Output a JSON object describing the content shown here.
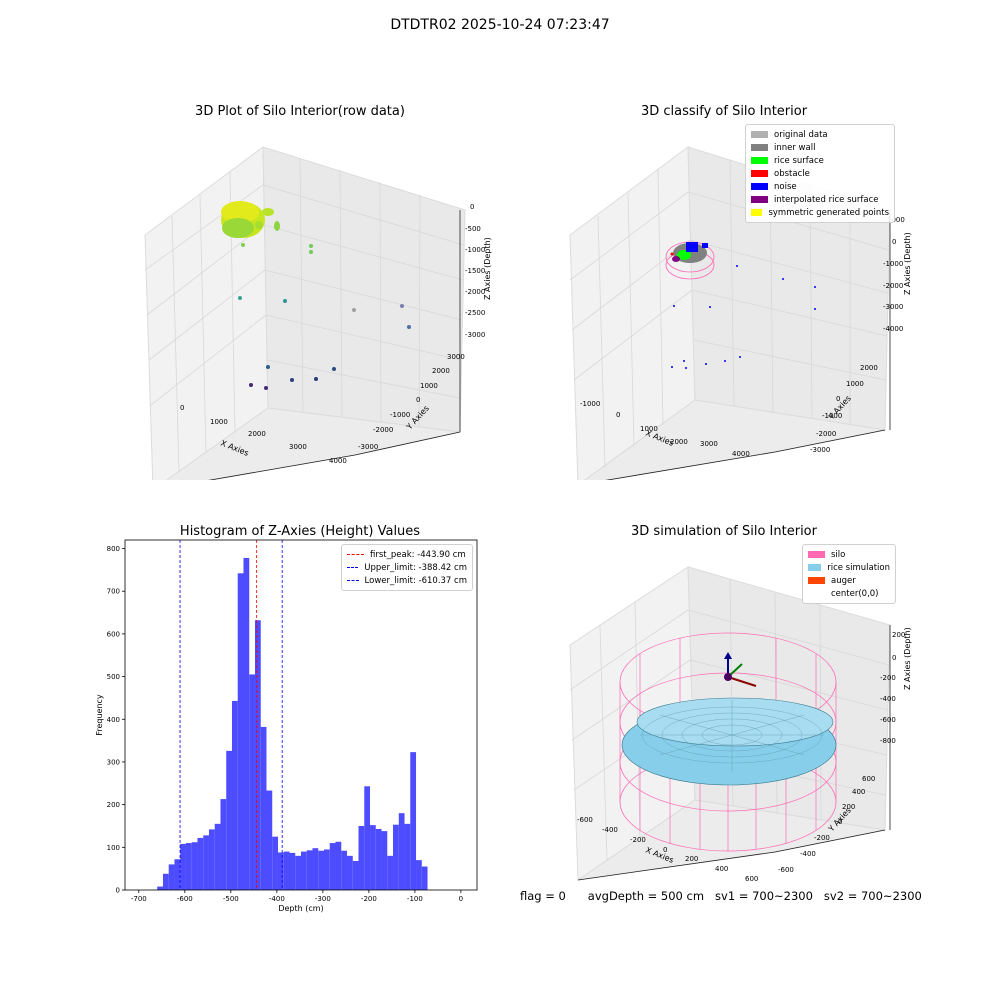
{
  "figure_title": "DTDTR02 2025-10-24 07:23:47",
  "footer": {
    "flag": "flag = 0",
    "avg_depth": "avgDepth = 500 cm",
    "sv1": "sv1 = 700~2300",
    "sv2": "sv2 = 700~2300"
  },
  "colors": {
    "bars": "#4d4dff",
    "first_peak": "#ff0000",
    "limits": "#0000ff",
    "pane": "#f2f2f2",
    "silo": "#ff69b4",
    "rice": "#87ceeb",
    "auger": "#ff4500"
  },
  "raw_plot": {
    "title": "3D Plot of Silo Interior(row data)",
    "x_label": "X Axies",
    "y_label": "Y Axies",
    "z_label": "Z Axies (Depth)",
    "x_ticks": [
      "0",
      "1000",
      "2000",
      "3000",
      "4000"
    ],
    "y_ticks": [
      "-3000",
      "-2000",
      "-1000",
      "0",
      "1000",
      "2000",
      "3000"
    ],
    "z_ticks": [
      "0",
      "-500",
      "-1000",
      "-1500",
      "-2000",
      "-2500",
      "-3000"
    ]
  },
  "classify_plot": {
    "title": "3D classify of Silo Interior",
    "x_label": "X Axies",
    "y_label": "Y Axies",
    "z_label": "Z Axies (Depth)",
    "x_ticks": [
      "-1000",
      "0",
      "1000",
      "2000",
      "3000",
      "4000"
    ],
    "y_ticks": [
      "-3000",
      "-2000",
      "-1000",
      "0",
      "1000",
      "2000"
    ],
    "z_ticks": [
      "1000",
      "0",
      "-1000",
      "-2000",
      "-3000",
      "-4000"
    ],
    "legend": [
      {
        "label": "original data",
        "color": "#b0b0b0"
      },
      {
        "label": "inner wall",
        "color": "#808080"
      },
      {
        "label": "rice surface",
        "color": "#00ff00"
      },
      {
        "label": "obstacle",
        "color": "#ff0000"
      },
      {
        "label": "noise",
        "color": "#0000ff"
      },
      {
        "label": "interpolated rice surface",
        "color": "#800080"
      },
      {
        "label": "symmetric generated points",
        "color": "#ffff00"
      }
    ]
  },
  "simulation_plot": {
    "title": "3D simulation of Silo Interior",
    "x_label": "X Axies",
    "y_label": "Y Axies",
    "z_label": "Z Axies (Depth)",
    "x_ticks": [
      "-600",
      "-400",
      "-200",
      "0",
      "200",
      "400",
      "600"
    ],
    "y_ticks": [
      "-600",
      "-400",
      "-200",
      "0",
      "200",
      "400",
      "600"
    ],
    "z_ticks": [
      "200",
      "0",
      "-200",
      "-400",
      "-600",
      "-800"
    ],
    "legend": [
      {
        "label": "silo",
        "color": "#ff69b4"
      },
      {
        "label": "rice simulation",
        "color": "#87ceeb"
      },
      {
        "label": "auger",
        "color": "#ff4500"
      },
      {
        "label": "center(0,0)",
        "color": ""
      }
    ]
  },
  "chart_data": {
    "type": "bar",
    "title": "Histogram of Z-Axies (Height) Values",
    "xlabel": "Depth (cm)",
    "ylabel": "Frequency",
    "xlim": [
      -730,
      35
    ],
    "ylim": [
      0,
      820
    ],
    "x_ticks": [
      -700,
      -600,
      -500,
      -400,
      -300,
      -200,
      -100,
      0
    ],
    "y_ticks": [
      0,
      100,
      200,
      300,
      400,
      500,
      600,
      700,
      800
    ],
    "bin_start": -660,
    "bin_width": 12.5,
    "values": [
      8,
      38,
      60,
      72,
      108,
      110,
      112,
      122,
      128,
      142,
      155,
      213,
      326,
      443,
      742,
      778,
      505,
      632,
      382,
      233,
      125,
      88,
      90,
      87,
      80,
      90,
      93,
      98,
      92,
      95,
      110,
      113,
      92,
      80,
      68,
      150,
      243,
      152,
      143,
      138,
      80,
      153,
      180,
      155,
      323,
      70,
      55
    ],
    "vlines": [
      {
        "label": "first_peak: -443.90 cm",
        "x": -443.9,
        "color": "#ff0000"
      },
      {
        "label": "Upper_limit: -388.42 cm",
        "x": -388.42,
        "color": "#0000ff"
      },
      {
        "label": "Lower_limit: -610.37 cm",
        "x": -610.37,
        "color": "#0000ff"
      }
    ]
  }
}
